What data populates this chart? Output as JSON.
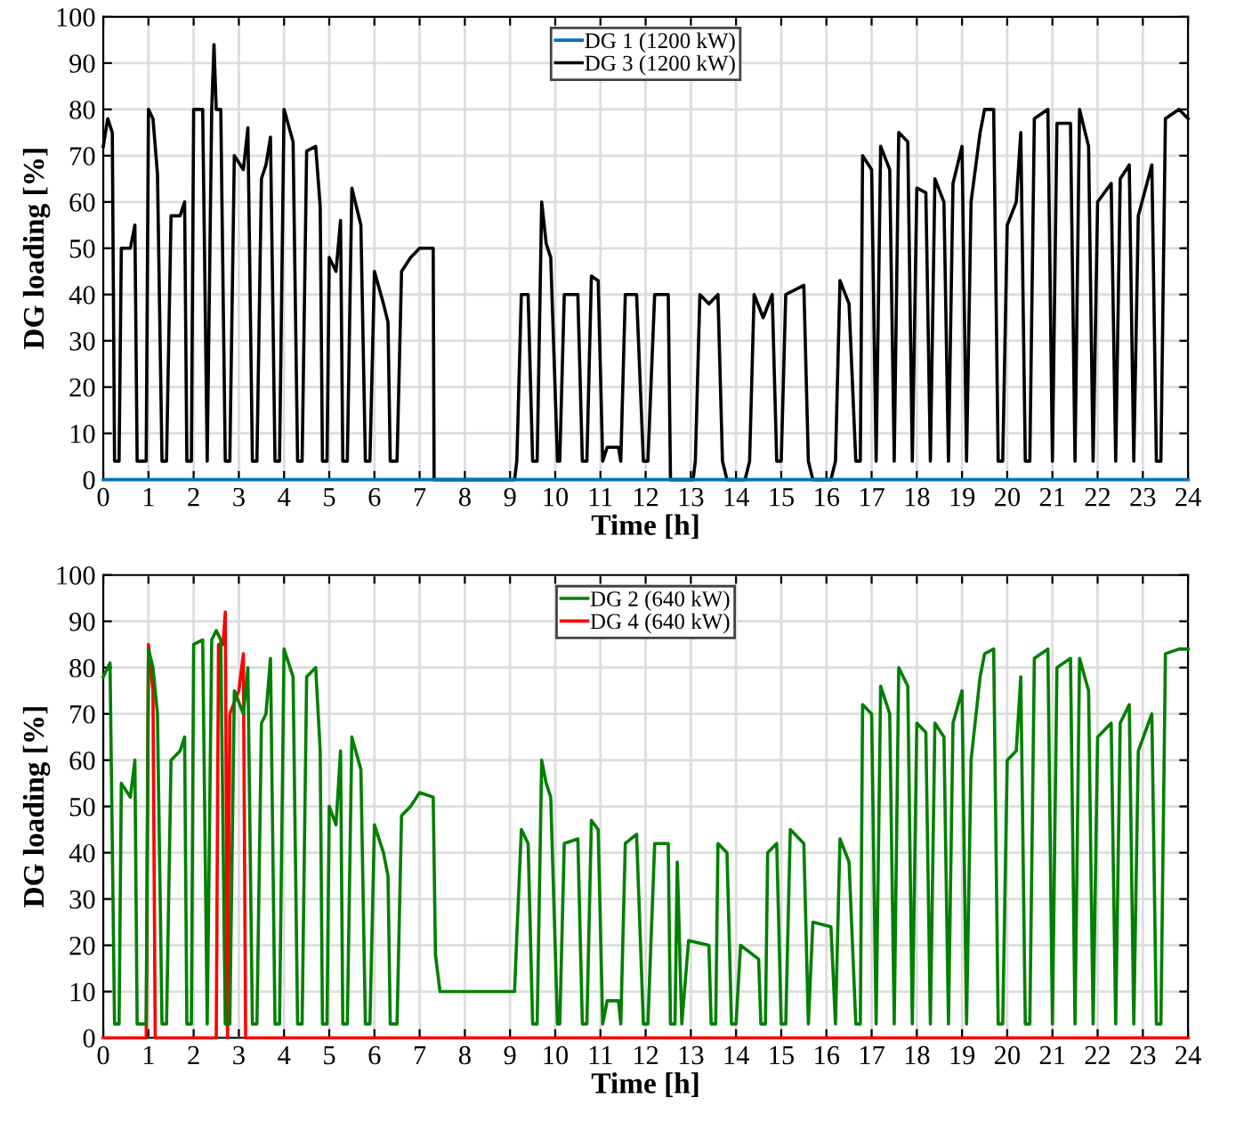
{
  "chart_data": [
    {
      "type": "line",
      "xlabel": "Time [h]",
      "ylabel": "DG loading [%]",
      "xlim": [
        0,
        24
      ],
      "ylim": [
        0,
        100
      ],
      "xticks": [
        0,
        1,
        2,
        3,
        4,
        5,
        6,
        7,
        8,
        9,
        10,
        11,
        12,
        13,
        14,
        15,
        16,
        17,
        18,
        19,
        20,
        21,
        22,
        23,
        24
      ],
      "yticks": [
        0,
        10,
        20,
        30,
        40,
        50,
        60,
        70,
        80,
        90,
        100
      ],
      "grid": true,
      "legend": "top",
      "line_style": "solid",
      "series": [
        {
          "name": "DG 1 (1200 kW)",
          "color": "#0072bd",
          "x": [
            0,
            24
          ],
          "values": [
            0,
            0
          ]
        },
        {
          "name": "DG 3 (1200 kW)",
          "color": "#000000",
          "x": [
            0,
            0.1,
            0.2,
            0.25,
            0.35,
            0.4,
            0.6,
            0.7,
            0.75,
            0.95,
            1.0,
            1.1,
            1.2,
            1.3,
            1.4,
            1.5,
            1.7,
            1.8,
            1.85,
            1.95,
            2.0,
            2.2,
            2.3,
            2.4,
            2.45,
            2.5,
            2.6,
            2.7,
            2.8,
            2.9,
            3.1,
            3.2,
            3.3,
            3.4,
            3.5,
            3.6,
            3.7,
            3.8,
            3.9,
            4.0,
            4.2,
            4.3,
            4.4,
            4.5,
            4.7,
            4.8,
            4.85,
            4.95,
            5.0,
            5.15,
            5.25,
            5.3,
            5.4,
            5.5,
            5.7,
            5.8,
            5.9,
            6.0,
            6.2,
            6.3,
            6.35,
            6.5,
            6.6,
            6.8,
            7.0,
            7.3,
            7.32,
            9.1,
            9.15,
            9.25,
            9.4,
            9.5,
            9.6,
            9.7,
            9.8,
            9.9,
            10.05,
            10.1,
            10.2,
            10.5,
            10.6,
            10.7,
            10.8,
            10.95,
            11.05,
            11.15,
            11.4,
            11.45,
            11.55,
            11.8,
            11.95,
            12.05,
            12.2,
            12.5,
            12.55,
            13.05,
            13.1,
            13.2,
            13.4,
            13.6,
            13.7,
            13.8,
            14.2,
            14.3,
            14.4,
            14.6,
            14.8,
            14.9,
            15.0,
            15.1,
            15.5,
            15.6,
            15.7,
            16.1,
            16.2,
            16.3,
            16.5,
            16.65,
            16.75,
            16.8,
            17.0,
            17.1,
            17.2,
            17.4,
            17.5,
            17.6,
            17.8,
            17.9,
            18.0,
            18.2,
            18.3,
            18.4,
            18.6,
            18.7,
            18.8,
            19.0,
            19.1,
            19.2,
            19.4,
            19.5,
            19.7,
            19.8,
            19.9,
            20.0,
            20.2,
            20.3,
            20.4,
            20.5,
            20.6,
            20.9,
            21.0,
            21.1,
            21.4,
            21.5,
            21.6,
            21.8,
            21.9,
            22.0,
            22.3,
            22.4,
            22.5,
            22.7,
            22.8,
            22.9,
            23.2,
            23.3,
            23.4,
            23.5,
            23.8,
            24
          ],
          "values": [
            72,
            78,
            75,
            4,
            4,
            50,
            50,
            55,
            4,
            4,
            80,
            78,
            66,
            4,
            4,
            57,
            57,
            60,
            4,
            4,
            80,
            80,
            4,
            80,
            94,
            80,
            80,
            4,
            4,
            70,
            67,
            76,
            4,
            4,
            65,
            68,
            74,
            4,
            4,
            80,
            73,
            4,
            4,
            71,
            72,
            59,
            4,
            4,
            48,
            45,
            56,
            4,
            4,
            63,
            55,
            4,
            4,
            45,
            38,
            34,
            4,
            4,
            45,
            48,
            50,
            50,
            0,
            0,
            4,
            40,
            40,
            4,
            4,
            60,
            51,
            48,
            4,
            4,
            40,
            40,
            4,
            4,
            44,
            43,
            4,
            7,
            7,
            4,
            40,
            40,
            4,
            4,
            40,
            40,
            0,
            0,
            4,
            40,
            38,
            40,
            4,
            0,
            0,
            4,
            40,
            35,
            40,
            4,
            4,
            40,
            42,
            4,
            0,
            0,
            4,
            43,
            38,
            4,
            4,
            70,
            67,
            4,
            72,
            67,
            4,
            75,
            73,
            4,
            63,
            62,
            4,
            65,
            60,
            4,
            64,
            72,
            4,
            60,
            75,
            80,
            80,
            4,
            4,
            55,
            60,
            75,
            4,
            4,
            78,
            80,
            4,
            77,
            77,
            4,
            80,
            72,
            4,
            60,
            64,
            4,
            65,
            68,
            4,
            57,
            68,
            4,
            4,
            78,
            80,
            78
          ]
        }
      ]
    },
    {
      "type": "line",
      "xlabel": "Time [h]",
      "ylabel": "DG loading [%]",
      "xlim": [
        0,
        24
      ],
      "ylim": [
        0,
        100
      ],
      "xticks": [
        0,
        1,
        2,
        3,
        4,
        5,
        6,
        7,
        8,
        9,
        10,
        11,
        12,
        13,
        14,
        15,
        16,
        17,
        18,
        19,
        20,
        21,
        22,
        23,
        24
      ],
      "yticks": [
        0,
        10,
        20,
        30,
        40,
        50,
        60,
        70,
        80,
        90,
        100
      ],
      "grid": true,
      "legend": "top",
      "line_style": "solid",
      "series": [
        {
          "name": "DG 2 (640 kW)",
          "color": "#008000",
          "x": [
            0,
            0.15,
            0.25,
            0.35,
            0.4,
            0.6,
            0.7,
            0.75,
            0.95,
            1.0,
            1.1,
            1.2,
            1.3,
            1.4,
            1.5,
            1.7,
            1.8,
            1.85,
            1.95,
            2.0,
            2.2,
            2.3,
            2.4,
            2.5,
            2.6,
            2.7,
            2.8,
            2.9,
            3.1,
            3.2,
            3.3,
            3.4,
            3.5,
            3.6,
            3.7,
            3.8,
            3.9,
            4.0,
            4.2,
            4.3,
            4.4,
            4.5,
            4.7,
            4.8,
            4.85,
            4.95,
            5.0,
            5.15,
            5.25,
            5.3,
            5.4,
            5.5,
            5.7,
            5.8,
            5.9,
            6.0,
            6.2,
            6.3,
            6.35,
            6.5,
            6.6,
            6.8,
            7.0,
            7.3,
            7.35,
            7.45,
            8.5,
            9.1,
            9.15,
            9.25,
            9.4,
            9.5,
            9.6,
            9.7,
            9.8,
            9.9,
            10.05,
            10.1,
            10.2,
            10.5,
            10.6,
            10.7,
            10.8,
            10.95,
            11.05,
            11.15,
            11.4,
            11.45,
            11.55,
            11.8,
            11.95,
            12.05,
            12.2,
            12.5,
            12.55,
            12.65,
            12.7,
            12.8,
            12.95,
            13.4,
            13.45,
            13.55,
            13.6,
            13.8,
            13.9,
            14.0,
            14.1,
            14.5,
            14.55,
            14.65,
            14.7,
            14.9,
            15.0,
            15.1,
            15.2,
            15.5,
            15.6,
            15.7,
            16.1,
            16.2,
            16.3,
            16.5,
            16.65,
            16.75,
            16.8,
            17.0,
            17.1,
            17.2,
            17.4,
            17.5,
            17.6,
            17.8,
            17.9,
            18.0,
            18.2,
            18.3,
            18.4,
            18.6,
            18.7,
            18.8,
            19.0,
            19.1,
            19.2,
            19.4,
            19.5,
            19.7,
            19.8,
            19.9,
            20.0,
            20.2,
            20.3,
            20.4,
            20.5,
            20.6,
            20.9,
            21.0,
            21.1,
            21.4,
            21.5,
            21.6,
            21.8,
            21.9,
            22.0,
            22.3,
            22.4,
            22.5,
            22.7,
            22.8,
            22.9,
            23.2,
            23.3,
            23.4,
            23.5,
            23.8,
            24
          ],
          "values": [
            78,
            81,
            3,
            3,
            55,
            52,
            60,
            3,
            3,
            84,
            80,
            70,
            3,
            3,
            60,
            62,
            65,
            3,
            3,
            85,
            86,
            3,
            86,
            88,
            86,
            3,
            3,
            75,
            70,
            80,
            3,
            3,
            68,
            70,
            82,
            3,
            3,
            84,
            78,
            3,
            3,
            78,
            80,
            62,
            3,
            3,
            50,
            46,
            62,
            3,
            3,
            65,
            58,
            3,
            3,
            46,
            40,
            35,
            3,
            3,
            48,
            50,
            53,
            52,
            18,
            10,
            10,
            10,
            22,
            45,
            42,
            3,
            3,
            60,
            55,
            52,
            3,
            3,
            42,
            43,
            3,
            3,
            47,
            45,
            3,
            8,
            8,
            3,
            42,
            44,
            3,
            3,
            42,
            42,
            3,
            3,
            38,
            3,
            21,
            20,
            3,
            3,
            42,
            40,
            3,
            3,
            20,
            17,
            3,
            3,
            40,
            42,
            3,
            3,
            45,
            42,
            3,
            25,
            24,
            3,
            43,
            38,
            3,
            3,
            72,
            70,
            3,
            76,
            70,
            3,
            80,
            76,
            3,
            68,
            66,
            3,
            68,
            65,
            3,
            68,
            75,
            3,
            60,
            78,
            83,
            84,
            3,
            3,
            60,
            62,
            78,
            3,
            3,
            82,
            84,
            3,
            80,
            82,
            3,
            82,
            75,
            3,
            65,
            68,
            3,
            68,
            72,
            3,
            62,
            70,
            3,
            3,
            83,
            84,
            84
          ]
        },
        {
          "name": "DG 4 (640 kW)",
          "color": "#ff0000",
          "x": [
            0,
            0.95,
            1.0,
            1.1,
            1.15,
            2.5,
            2.55,
            2.65,
            2.7,
            2.75,
            2.8,
            3.0,
            3.1,
            3.15,
            24
          ],
          "values": [
            0,
            0,
            85,
            75,
            0,
            0,
            85,
            85,
            92,
            0,
            70,
            75,
            83,
            0,
            0
          ]
        }
      ]
    }
  ]
}
